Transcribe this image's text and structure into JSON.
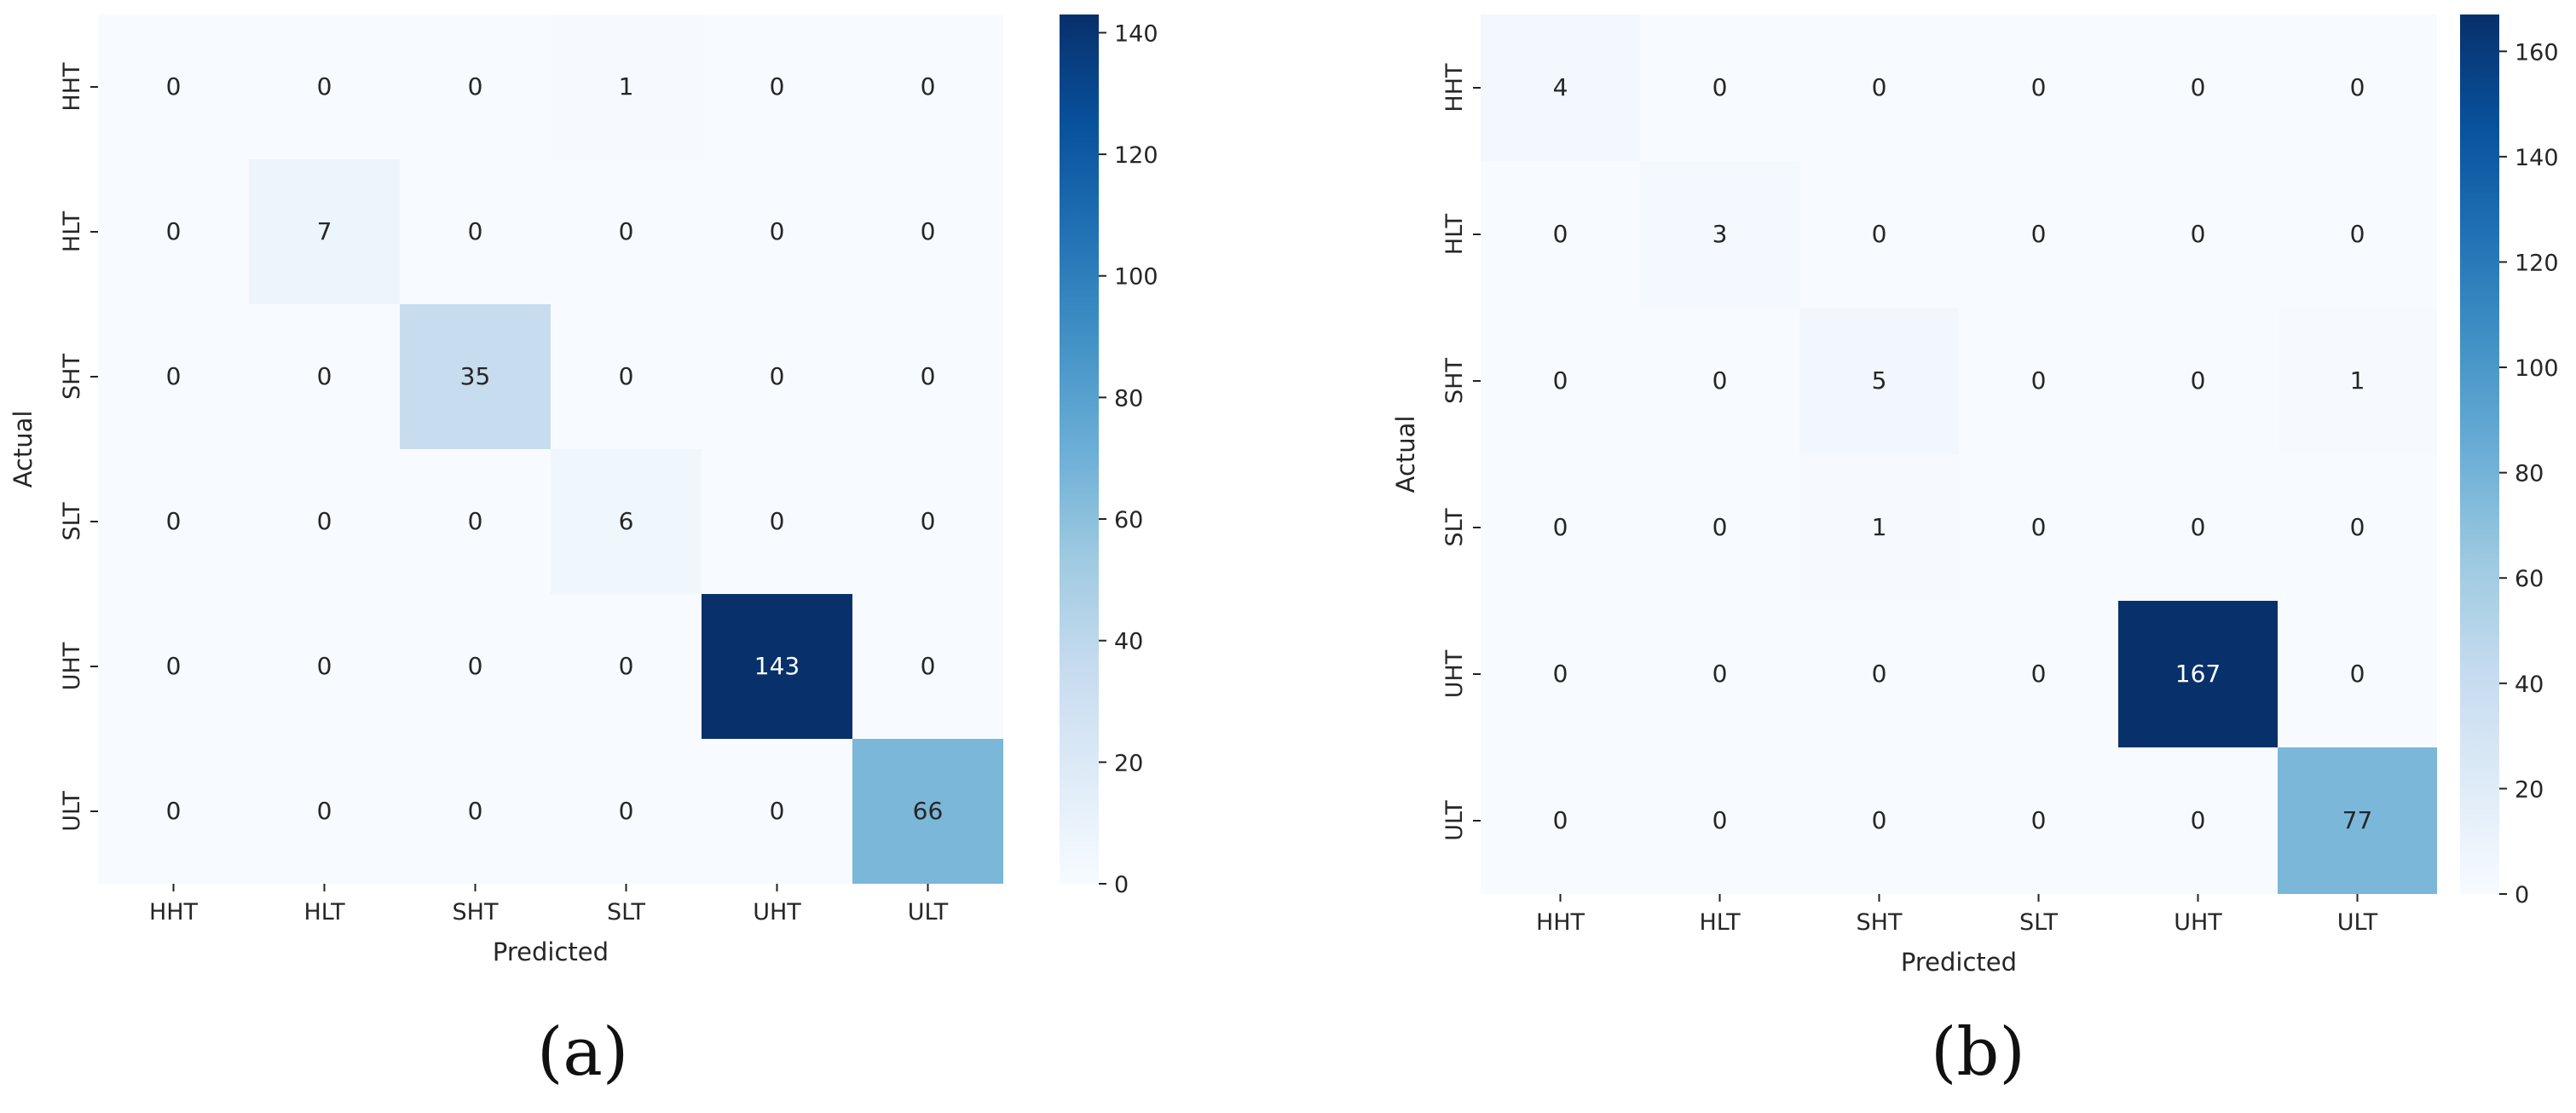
{
  "colors": {
    "cmap": [
      "#f7fbff",
      "#deebf7",
      "#c6dbef",
      "#9ecae1",
      "#6baed6",
      "#4292c6",
      "#2171b5",
      "#08519c",
      "#08306b"
    ],
    "text_dark": "#262626",
    "text_light": "#ffffff"
  },
  "chart_data": [
    {
      "type": "heatmap",
      "panel_label": "(a)",
      "x_labels": [
        "HHT",
        "HLT",
        "SHT",
        "SLT",
        "UHT",
        "ULT"
      ],
      "y_labels": [
        "HHT",
        "HLT",
        "SHT",
        "SLT",
        "UHT",
        "ULT"
      ],
      "xlabel": "Predicted",
      "ylabel": "Actual",
      "values": [
        [
          0,
          0,
          0,
          1,
          0,
          0
        ],
        [
          0,
          7,
          0,
          0,
          0,
          0
        ],
        [
          0,
          0,
          35,
          0,
          0,
          0
        ],
        [
          0,
          0,
          0,
          6,
          0,
          0
        ],
        [
          0,
          0,
          0,
          0,
          143,
          0
        ],
        [
          0,
          0,
          0,
          0,
          0,
          66
        ]
      ],
      "vmin": 0,
      "vmax": 143,
      "colorbar_ticks": [
        0,
        20,
        40,
        60,
        80,
        100,
        120,
        140
      ]
    },
    {
      "type": "heatmap",
      "panel_label": "(b)",
      "x_labels": [
        "HHT",
        "HLT",
        "SHT",
        "SLT",
        "UHT",
        "ULT"
      ],
      "y_labels": [
        "HHT",
        "HLT",
        "SHT",
        "SLT",
        "UHT",
        "ULT"
      ],
      "xlabel": "Predicted",
      "ylabel": "Actual",
      "values": [
        [
          4,
          0,
          0,
          0,
          0,
          0
        ],
        [
          0,
          3,
          0,
          0,
          0,
          0
        ],
        [
          0,
          0,
          5,
          0,
          0,
          1
        ],
        [
          0,
          0,
          1,
          0,
          0,
          0
        ],
        [
          0,
          0,
          0,
          0,
          167,
          0
        ],
        [
          0,
          0,
          0,
          0,
          0,
          77
        ]
      ],
      "vmin": 0,
      "vmax": 167,
      "colorbar_ticks": [
        0,
        20,
        40,
        60,
        80,
        100,
        120,
        140,
        160
      ]
    }
  ]
}
